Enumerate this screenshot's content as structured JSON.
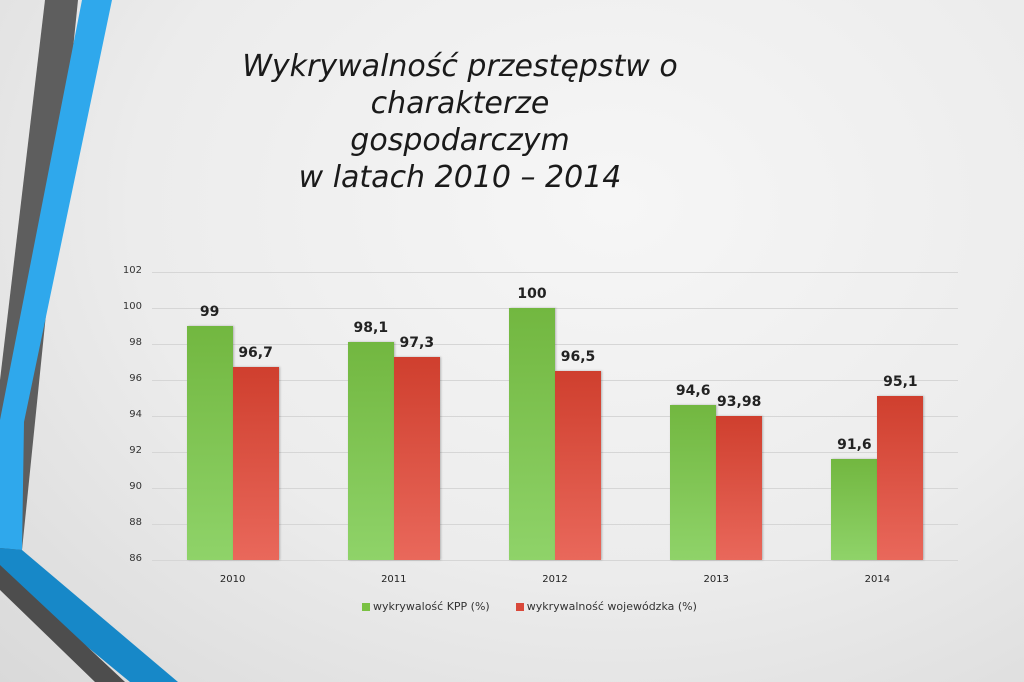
{
  "slide": {
    "title_lines": [
      "Wykrywalność przestępstw o charakterze",
      "gospodarczym",
      "w latach 2010 – 2014"
    ]
  },
  "colors": {
    "series_kpp": "#7ac143",
    "series_woj": "#d9483a",
    "accent_blue": "#2fa8ec",
    "accent_gray": "#666666"
  },
  "chart_data": {
    "type": "bar",
    "title": "Wykrywalność przestępstw o charakterze gospodarczym w latach 2010 – 2014",
    "xlabel": "",
    "ylabel": "",
    "categories": [
      "2010",
      "2011",
      "2012",
      "2013",
      "2014"
    ],
    "series": [
      {
        "name": "wykrywalość KPP (%)",
        "values": [
          99,
          98.1,
          100,
          94.6,
          91.6
        ],
        "labels": [
          "99",
          "98,1",
          "100",
          "94,6",
          "91,6"
        ],
        "color": "#7ac143"
      },
      {
        "name": "wykrywalność wojewódzka (%)",
        "values": [
          96.7,
          97.3,
          96.5,
          93.98,
          95.1
        ],
        "labels": [
          "96,7",
          "97,3",
          "96,5",
          "93,98",
          "95,1"
        ],
        "color": "#d9483a"
      }
    ],
    "ylim": [
      86,
      102
    ],
    "yticks": [
      "102",
      "100",
      "98",
      "96",
      "94",
      "92",
      "90",
      "88",
      "86"
    ],
    "grid": true,
    "legend_position": "bottom"
  }
}
